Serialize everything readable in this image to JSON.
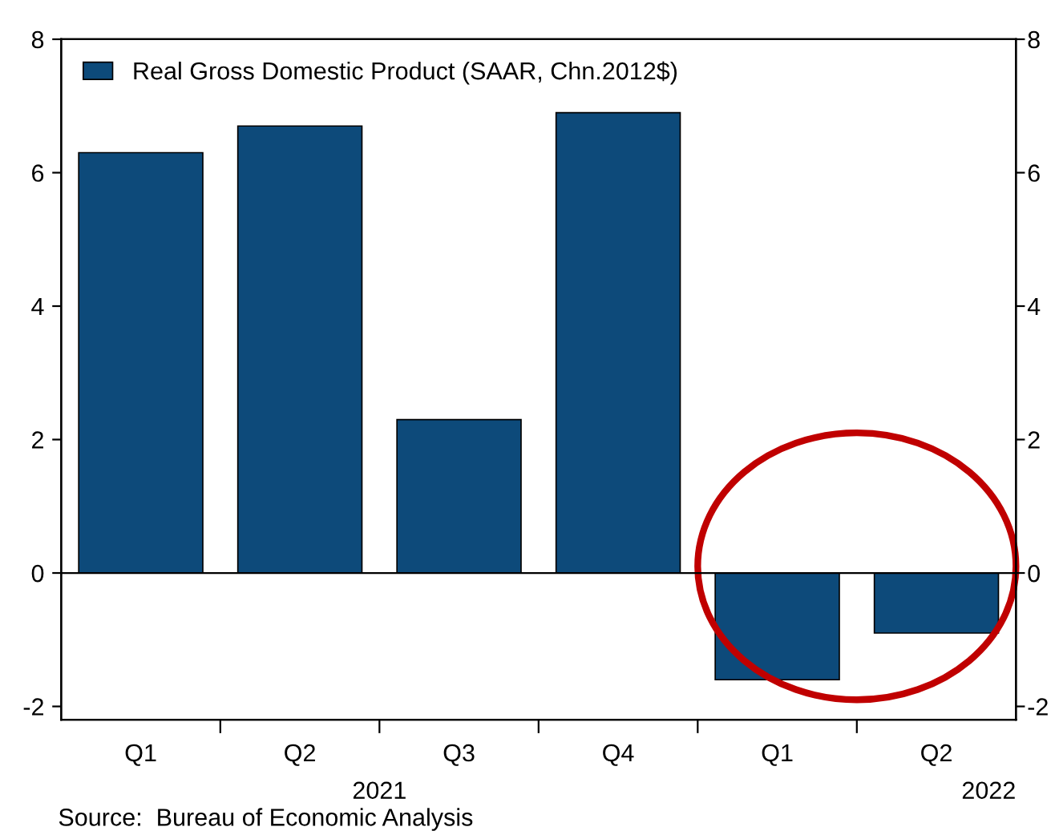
{
  "chart_data": {
    "type": "bar",
    "categories": [
      "Q1",
      "Q2",
      "Q3",
      "Q4",
      "Q1",
      "Q2"
    ],
    "series": [
      {
        "name": "Real Gross Domestic Product (SAAR, Chn.2012$)",
        "color": "#0d4a7a",
        "values": [
          6.3,
          6.7,
          2.3,
          6.9,
          -1.6,
          -0.9
        ]
      }
    ],
    "ylim": [
      -2.2,
      8
    ],
    "yticks": [
      -2,
      0,
      2,
      4,
      6,
      8
    ],
    "y2lim": [
      -2.2,
      8
    ],
    "y2ticks": [
      -2,
      0,
      2,
      4,
      6,
      8
    ],
    "legend": "top left",
    "ref_lines": [
      {
        "axis": "y",
        "value": 0,
        "color": "#000000"
      }
    ],
    "annotations": [
      "2021",
      "2022",
      "Source:  Bureau of Economic Analysis"
    ]
  }
}
